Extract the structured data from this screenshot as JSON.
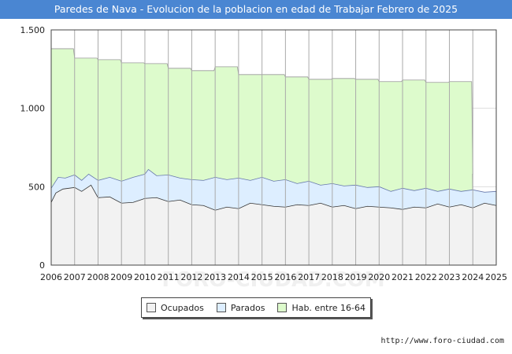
{
  "title": "Paredes de Nava - Evolucion de la poblacion en edad de Trabajar Febrero de 2025",
  "url": "http://www.foro-ciudad.com",
  "watermark": "FORO-CIUDAD.COM",
  "chart_data": {
    "type": "area",
    "title": "Paredes de Nava - Evolucion de la poblacion en edad de Trabajar Febrero de 2025",
    "xlabel": "",
    "ylabel": "",
    "xlim": [
      2006,
      2025
    ],
    "ylim": [
      0,
      1500
    ],
    "y_ticks": [
      0,
      500,
      1000,
      1500
    ],
    "y_tick_labels": [
      "0",
      "500",
      "1.000",
      "1.500"
    ],
    "x_ticks": [
      2006,
      2007,
      2008,
      2009,
      2010,
      2011,
      2012,
      2013,
      2014,
      2015,
      2016,
      2017,
      2018,
      2019,
      2020,
      2021,
      2022,
      2023,
      2024,
      2025
    ],
    "x_tick_labels": [
      "2006",
      "2007",
      "2008",
      "2009",
      "2010",
      "2011",
      "2012",
      "2013",
      "2014",
      "2015",
      "2016",
      "2017",
      "2018",
      "2019",
      "2020",
      "2021",
      "2022",
      "2023",
      "2024",
      "2025"
    ],
    "grid": true,
    "legend": {
      "position": "bottom-center",
      "items": [
        {
          "label": "Ocupados",
          "color": "#f2f2f2"
        },
        {
          "label": "Parados",
          "color": "#ddeeff"
        },
        {
          "label": "Hab. entre 16-64",
          "color": "#ddfbcc"
        }
      ]
    },
    "series": [
      {
        "name": "Hab. entre 16-64",
        "fill": "#ddfbcc",
        "stroke": "#999999",
        "x": [
          2006,
          2007,
          2008,
          2009,
          2010,
          2011,
          2012,
          2013,
          2014,
          2015,
          2016,
          2017,
          2018,
          2019,
          2020,
          2021,
          2022,
          2023,
          2024
        ],
        "values": [
          1380,
          1320,
          1310,
          1290,
          1285,
          1255,
          1240,
          1265,
          1215,
          1215,
          1200,
          1185,
          1190,
          1185,
          1170,
          1180,
          1165,
          1170,
          580
        ]
      },
      {
        "name": "Parados",
        "fill": "#ddeeff",
        "stroke": "#6677aa",
        "x": [
          2006,
          2006.3,
          2006.6,
          2007,
          2007.3,
          2007.6,
          2008,
          2008.5,
          2009,
          2009.5,
          2010,
          2010.15,
          2010.5,
          2011,
          2011.5,
          2012,
          2012.5,
          2013,
          2013.5,
          2014,
          2014.5,
          2015,
          2015.5,
          2016,
          2016.5,
          2017,
          2017.5,
          2018,
          2018.5,
          2019,
          2019.5,
          2020,
          2020.5,
          2021,
          2021.5,
          2022,
          2022.5,
          2023,
          2023.5,
          2024,
          2024.5,
          2025
        ],
        "values": [
          490,
          560,
          555,
          575,
          540,
          580,
          540,
          560,
          535,
          560,
          580,
          610,
          570,
          575,
          555,
          545,
          540,
          560,
          545,
          555,
          540,
          560,
          535,
          545,
          520,
          535,
          510,
          520,
          505,
          510,
          495,
          500,
          470,
          490,
          475,
          490,
          470,
          485,
          470,
          480,
          465,
          470
        ]
      },
      {
        "name": "Ocupados",
        "fill": "#f2f2f2",
        "stroke": "#333333",
        "x": [
          2006,
          2006.2,
          2006.5,
          2007,
          2007.3,
          2007.7,
          2008,
          2008.5,
          2009,
          2009.5,
          2010,
          2010.5,
          2011,
          2011.5,
          2012,
          2012.5,
          2013,
          2013.5,
          2014,
          2014.5,
          2015,
          2015.5,
          2016,
          2016.5,
          2017,
          2017.5,
          2018,
          2018.5,
          2019,
          2019.5,
          2020,
          2020.5,
          2021,
          2021.5,
          2022,
          2022.5,
          2023,
          2023.5,
          2024,
          2024.5,
          2025
        ],
        "values": [
          400,
          460,
          485,
          495,
          470,
          510,
          430,
          435,
          395,
          400,
          425,
          430,
          405,
          415,
          385,
          380,
          350,
          370,
          360,
          395,
          385,
          375,
          370,
          385,
          380,
          395,
          370,
          380,
          360,
          375,
          370,
          365,
          355,
          370,
          365,
          390,
          370,
          385,
          365,
          395,
          380
        ]
      }
    ]
  }
}
